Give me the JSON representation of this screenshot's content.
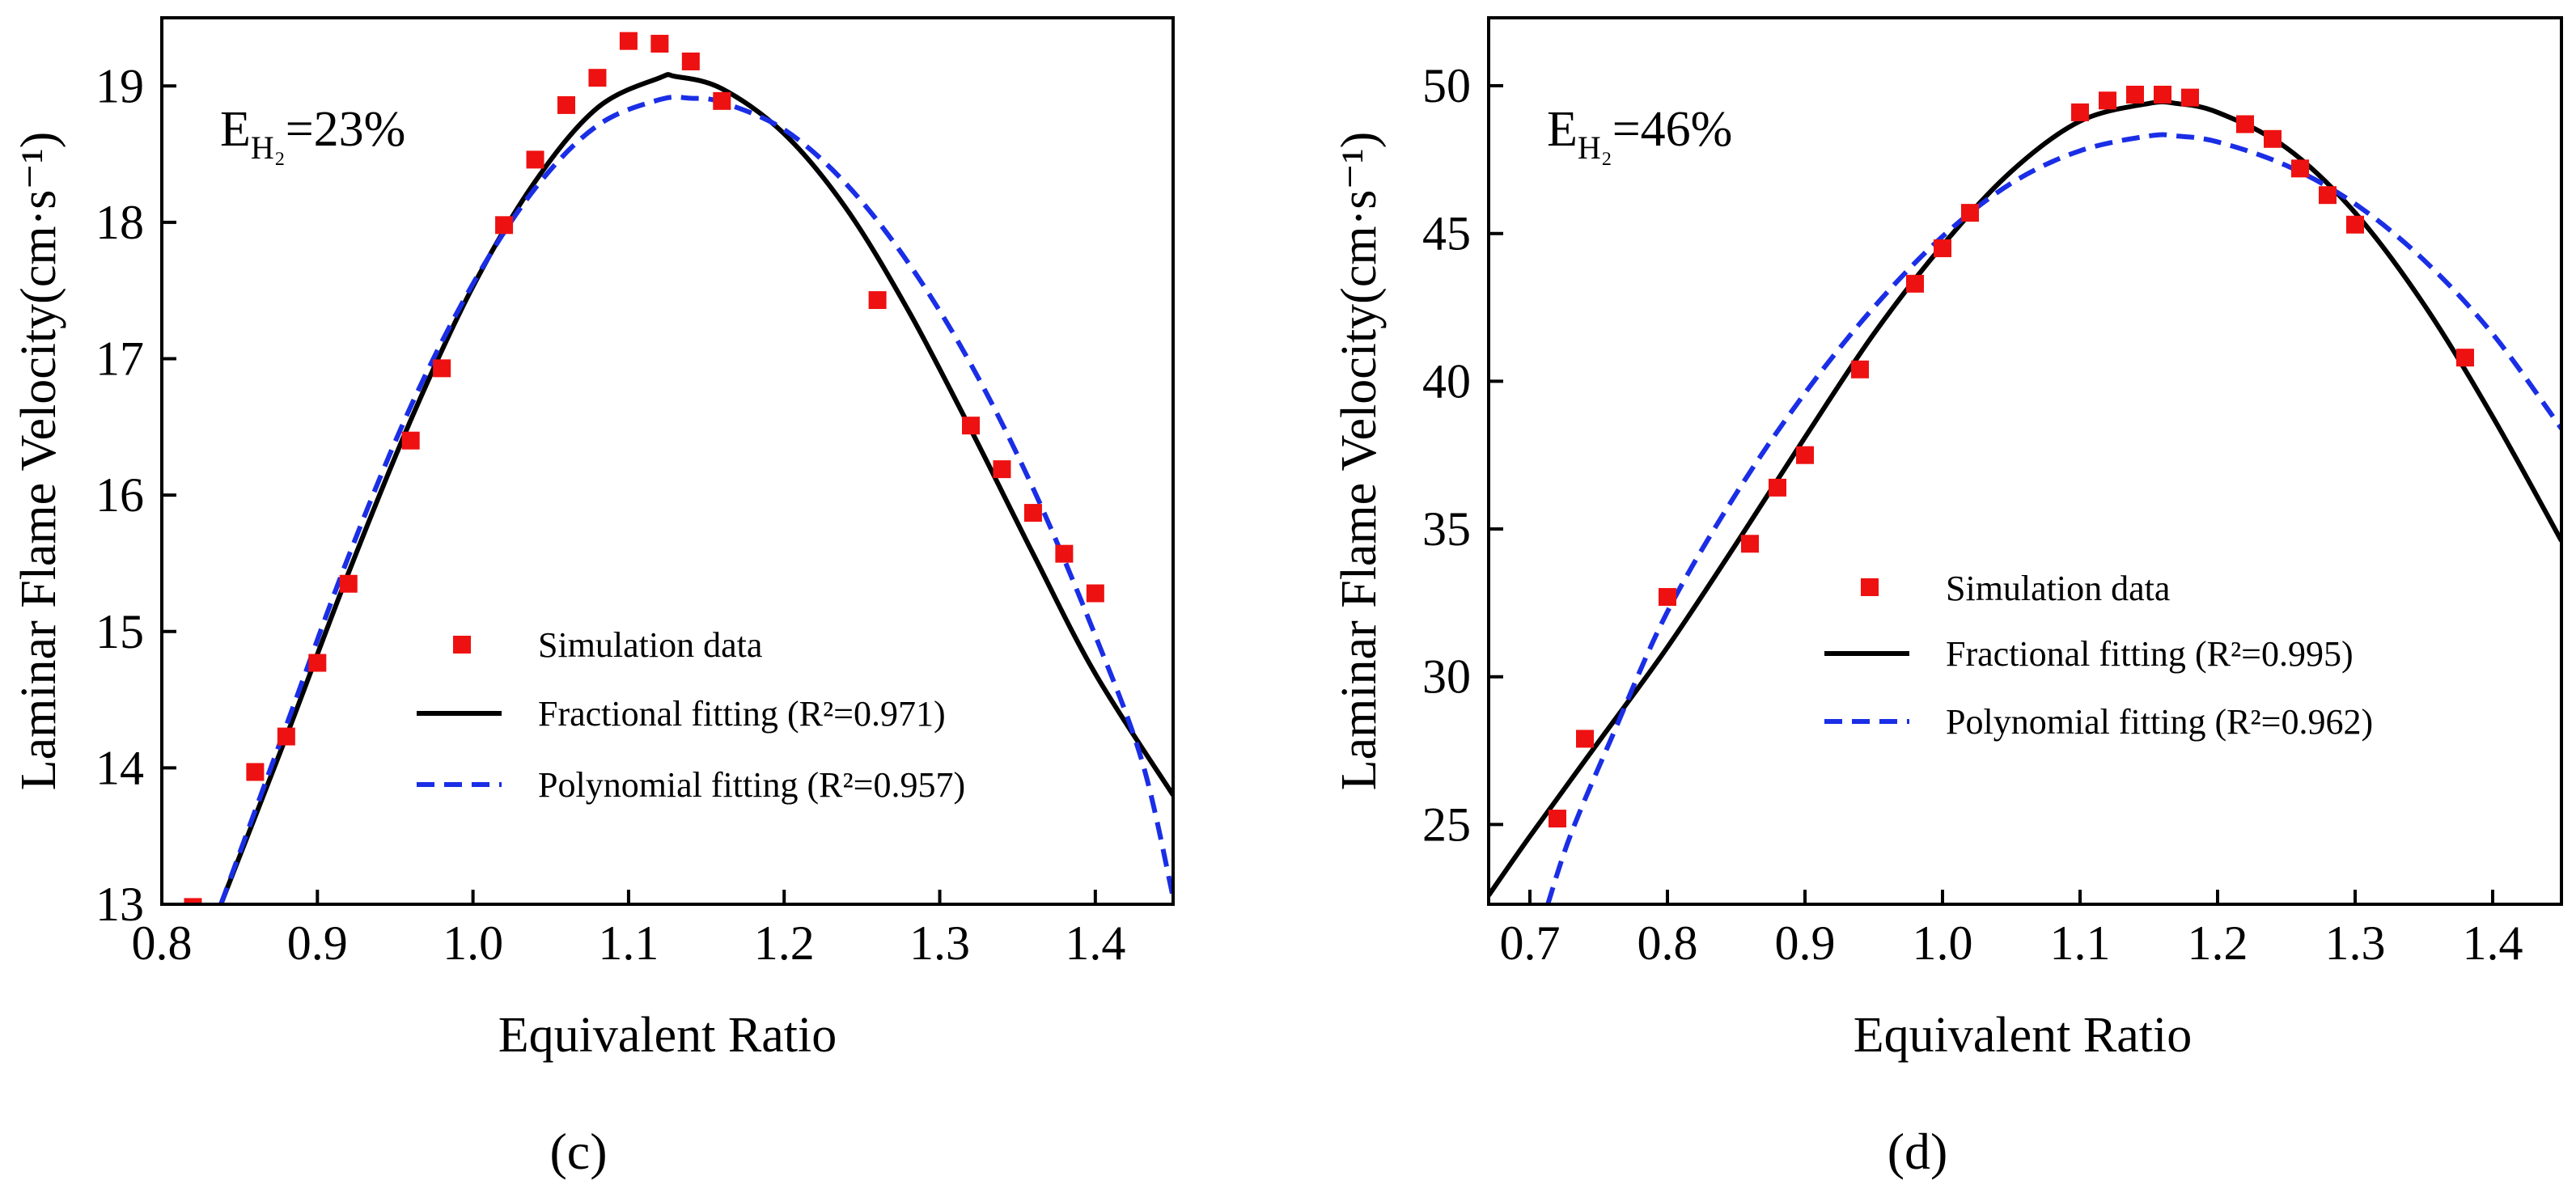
{
  "chart_data": [
    {
      "type": "scatter",
      "panel_label": "(c)",
      "annotation": {
        "prefix": "E",
        "subscript": "H₂",
        "suffix": "=23%"
      },
      "xlabel": "Equivalent Ratio",
      "ylabel": "Laminar Flame Velocity(cm·s⁻¹)",
      "xlim": [
        0.8,
        1.45
      ],
      "ylim": [
        13,
        19.5
      ],
      "xticks": [
        0.8,
        0.9,
        1.0,
        1.1,
        1.2,
        1.3,
        1.4
      ],
      "xtick_labels": [
        "0.8",
        "0.9",
        "1.0",
        "1.1",
        "1.2",
        "1.3",
        "1.4"
      ],
      "yticks": [
        13,
        14,
        15,
        16,
        17,
        18,
        19
      ],
      "ytick_labels": [
        "13",
        "14",
        "15",
        "16",
        "17",
        "18",
        "19"
      ],
      "legend_position": "lower-right",
      "series": [
        {
          "name": "Simulation data",
          "kind": "markers",
          "color": "#ee1111",
          "x": [
            0.82,
            0.86,
            0.88,
            0.9,
            0.92,
            0.96,
            0.98,
            1.02,
            1.04,
            1.06,
            1.08,
            1.1,
            1.12,
            1.14,
            1.16,
            1.26,
            1.32,
            1.34,
            1.36,
            1.38,
            1.4
          ],
          "y": [
            12.98,
            13.97,
            14.23,
            14.77,
            15.35,
            16.4,
            16.93,
            17.98,
            18.46,
            18.86,
            19.06,
            19.33,
            19.31,
            19.18,
            18.89,
            17.43,
            16.51,
            16.19,
            15.87,
            15.57,
            15.28
          ]
        },
        {
          "name": "Fractional fitting",
          "r2_label": "(R²=0.971)",
          "kind": "solid",
          "color": "#000000",
          "x": [
            0.838,
            0.88,
            0.92,
            0.96,
            1.0,
            1.04,
            1.08,
            1.12,
            1.13,
            1.16,
            1.2,
            1.24,
            1.28,
            1.32,
            1.36,
            1.4,
            1.45
          ],
          "y": [
            13.0,
            14.23,
            15.43,
            16.55,
            17.53,
            18.3,
            18.84,
            19.06,
            19.07,
            18.98,
            18.65,
            18.1,
            17.35,
            16.48,
            15.57,
            14.69,
            13.8
          ]
        },
        {
          "name": "Polynomial fitting",
          "r2_label": "(R²=0.957)",
          "kind": "dashed",
          "color": "#1a2ee6",
          "x": [
            0.838,
            0.88,
            0.92,
            0.96,
            1.0,
            1.04,
            1.08,
            1.12,
            1.14,
            1.16,
            1.2,
            1.24,
            1.28,
            1.32,
            1.36,
            1.4,
            1.43,
            1.45
          ],
          "y": [
            13.0,
            14.31,
            15.55,
            16.65,
            17.55,
            18.25,
            18.71,
            18.9,
            18.91,
            18.88,
            18.68,
            18.28,
            17.7,
            16.96,
            16.05,
            14.97,
            14.05,
            13.05
          ]
        }
      ]
    },
    {
      "type": "scatter",
      "panel_label": "(d)",
      "annotation": {
        "prefix": "E",
        "subscript": "H₂",
        "suffix": "=46%"
      },
      "xlabel": "Equivalent Ratio",
      "ylabel": "Laminar Flame Velocity(cm·s⁻¹)",
      "xlim": [
        0.67,
        1.45
      ],
      "ylim": [
        22.3,
        52.3
      ],
      "xticks": [
        0.7,
        0.8,
        0.9,
        1.0,
        1.1,
        1.2,
        1.3,
        1.4
      ],
      "xtick_labels": [
        "0.7",
        "0.8",
        "0.9",
        "1.0",
        "1.1",
        "1.2",
        "1.3",
        "1.4"
      ],
      "yticks": [
        25,
        30,
        35,
        40,
        45,
        50
      ],
      "ytick_labels": [
        "25",
        "30",
        "35",
        "40",
        "45",
        "50"
      ],
      "legend_position": "center-right",
      "series": [
        {
          "name": "Simulation data",
          "kind": "markers",
          "color": "#ee1111",
          "x": [
            0.72,
            0.74,
            0.8,
            0.86,
            0.88,
            0.9,
            0.94,
            0.98,
            1.0,
            1.02,
            1.1,
            1.12,
            1.14,
            1.16,
            1.18,
            1.22,
            1.24,
            1.26,
            1.28,
            1.3,
            1.38
          ],
          "y": [
            25.2,
            27.9,
            32.7,
            34.5,
            36.4,
            37.5,
            40.4,
            43.3,
            44.5,
            45.7,
            49.1,
            49.5,
            49.7,
            49.7,
            49.6,
            48.7,
            48.2,
            47.2,
            46.3,
            45.3,
            40.8
          ]
        },
        {
          "name": "Fractional fitting",
          "r2_label": "(R²=0.995)",
          "kind": "solid",
          "color": "#000000",
          "x": [
            0.67,
            0.7,
            0.75,
            0.8,
            0.85,
            0.9,
            0.95,
            1.0,
            1.05,
            1.1,
            1.15,
            1.17,
            1.2,
            1.25,
            1.3,
            1.35,
            1.4,
            1.45
          ],
          "y": [
            22.6,
            24.6,
            27.8,
            31.0,
            34.5,
            38.1,
            41.6,
            44.6,
            47.1,
            48.8,
            49.4,
            49.4,
            49.1,
            47.9,
            45.7,
            42.6,
            38.8,
            34.6
          ]
        },
        {
          "name": "Polynomial fitting",
          "r2_label": "(R²=0.962)",
          "kind": "dashed",
          "color": "#1a2ee6",
          "x": [
            0.713,
            0.73,
            0.76,
            0.8,
            0.85,
            0.9,
            0.95,
            1.0,
            1.05,
            1.1,
            1.15,
            1.17,
            1.2,
            1.25,
            1.3,
            1.35,
            1.4,
            1.45
          ],
          "y": [
            22.3,
            24.7,
            28.0,
            32.2,
            36.2,
            39.6,
            42.5,
            44.9,
            46.7,
            47.8,
            48.3,
            48.3,
            48.1,
            47.3,
            46.0,
            44.1,
            41.6,
            38.4
          ]
        }
      ]
    }
  ]
}
